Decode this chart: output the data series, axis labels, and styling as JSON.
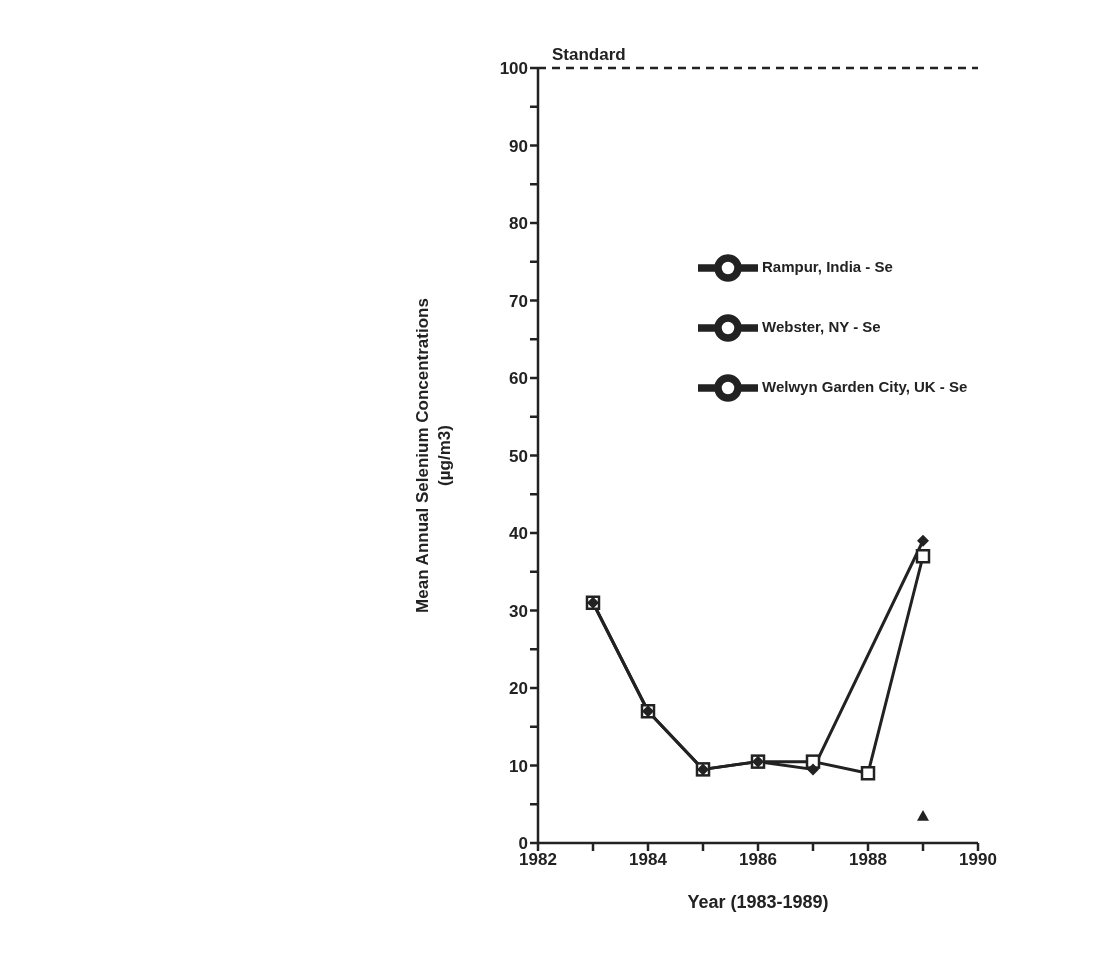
{
  "chart_data": {
    "type": "line",
    "xlabel": "Year    (1983-1989)",
    "ylabel": "Mean Annual Selenium Concentrations (µg/m3)",
    "x": [
      1983,
      1984,
      1985,
      1986,
      1987,
      1988,
      1989
    ],
    "series": [
      {
        "name": "Webster, NY - Se",
        "color": "#222222",
        "marker": "square",
        "values": [
          31,
          17,
          9.5,
          10.5,
          10.5,
          9,
          37
        ]
      },
      {
        "name": "Welwyn Garden City, UK - Se",
        "color": "#222222",
        "marker": "diamond",
        "values": [
          31,
          17,
          9.5,
          10.5,
          9.5,
          null,
          39
        ]
      },
      {
        "name": "Rampur, India - Se",
        "color": "#222222",
        "marker": "triangle",
        "values": [
          null,
          null,
          null,
          null,
          null,
          null,
          3.5
        ]
      }
    ],
    "xlim": [
      1982,
      1990
    ],
    "xticks": [
      1982,
      {
        "value": 1983,
        "label": null
      },
      1984,
      {
        "value": 1985,
        "label": null
      },
      1986,
      {
        "value": 1987,
        "label": null
      },
      1988,
      {
        "value": 1989,
        "label": null
      },
      1990
    ],
    "ylim": [
      0,
      100
    ],
    "yticks": [
      0,
      {
        "value": 5,
        "label": null
      },
      10,
      {
        "value": 15,
        "label": null
      },
      20,
      {
        "value": 25,
        "label": null
      },
      30,
      {
        "value": 35,
        "label": null
      },
      40,
      {
        "value": 45,
        "label": null
      },
      50,
      {
        "value": 55,
        "label": null
      },
      60,
      {
        "value": 65,
        "label": null
      },
      70,
      {
        "value": 75,
        "label": null
      },
      80,
      {
        "value": 85,
        "label": null
      },
      90,
      {
        "value": 95,
        "label": null
      },
      100
    ],
    "ref_lines": [
      {
        "axis": "y",
        "value": 100,
        "label": "Standard",
        "line_style": "dashed"
      }
    ],
    "legend": "top right",
    "grid": false,
    "line_style": "solid"
  }
}
